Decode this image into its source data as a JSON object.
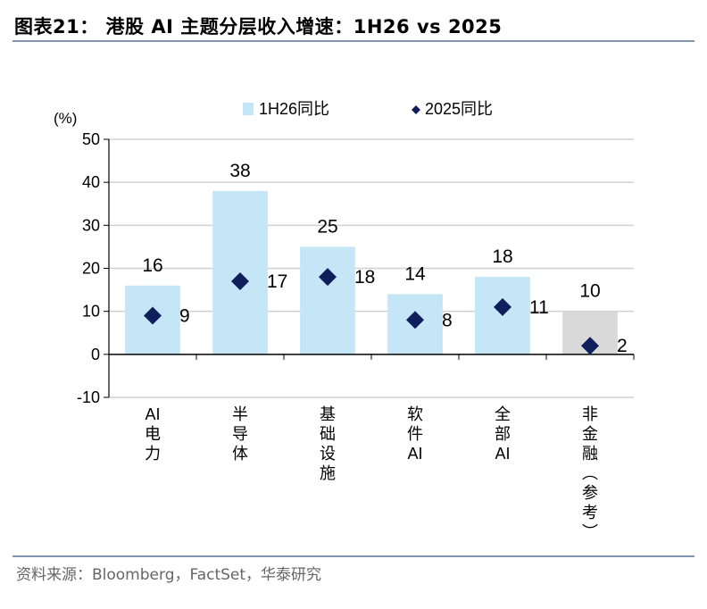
{
  "header": {
    "title": "图表21：  港股 AI 主题分层收入增速：1H26 vs 2025"
  },
  "footer": {
    "source": "资料来源：Bloomberg，FactSet，华泰研究"
  },
  "colors": {
    "bar": "#c5e6f7",
    "bar_reference": "#d9d9d9",
    "marker": "#0f1f5c",
    "grid": "#d0d0d0",
    "rule": "#8096b0"
  },
  "chart_data": {
    "type": "bar",
    "unit_label": "(%)",
    "categories": [
      "AI电力",
      "半导体",
      "基础设施",
      "软件AI",
      "全部AI",
      "非金融(参考)"
    ],
    "series": [
      {
        "name": "1H26同比",
        "type": "bar",
        "values": [
          16,
          38,
          25,
          14,
          18,
          10
        ]
      },
      {
        "name": "2025同比",
        "type": "scatter",
        "marker": "diamond",
        "values": [
          9,
          17,
          18,
          8,
          11,
          2
        ]
      }
    ],
    "highlight_category": "非金融(参考)",
    "ylim": [
      -10,
      50
    ],
    "yticks": [
      -10,
      0,
      10,
      20,
      30,
      40,
      50
    ],
    "grid": true,
    "legend": "top"
  }
}
